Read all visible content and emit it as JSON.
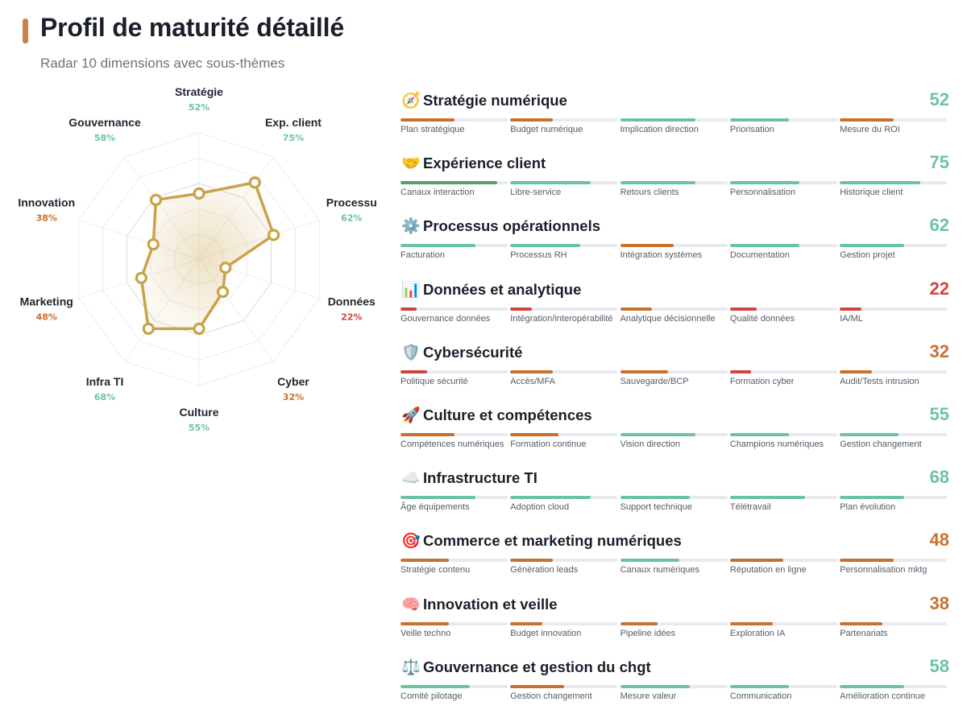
{
  "header": {
    "title": "Profil de maturité détaillé",
    "subtitle": "Radar 10 dimensions avec sous-thèmes"
  },
  "colors": {
    "high": "#6cc3a3",
    "mid": "#c9702f",
    "low": "#d0453d",
    "highest_bar": "#56a06d",
    "accent": "#c9824a",
    "radar_line": "#c9a24a"
  },
  "chart_data": {
    "type": "radar",
    "scale": [
      0,
      100
    ],
    "axes": [
      {
        "label": "Stratégie",
        "value_label": "52%",
        "value": 52
      },
      {
        "label": "Exp. client",
        "value_label": "75%",
        "value": 75
      },
      {
        "label": "Processu",
        "value_label": "62%",
        "value": 62
      },
      {
        "label": "Données",
        "value_label": "22%",
        "value": 22
      },
      {
        "label": "Cyber",
        "value_label": "32%",
        "value": 32
      },
      {
        "label": "Culture",
        "value_label": "55%",
        "value": 55
      },
      {
        "label": "Infra TI",
        "value_label": "68%",
        "value": 68
      },
      {
        "label": "Marketing",
        "value_label": "48%",
        "value": 48
      },
      {
        "label": "Innovation",
        "value_label": "38%",
        "value": 38
      },
      {
        "label": "Gouvernance",
        "value_label": "58%",
        "value": 58
      }
    ]
  },
  "dimensions": [
    {
      "icon": "compass-icon",
      "glyph": "🧭",
      "title": "Stratégie numérique",
      "score": "52",
      "level": "high",
      "subs": [
        {
          "label": "Plan stratégique",
          "value": 50,
          "level": "mid"
        },
        {
          "label": "Budget numérique",
          "value": 40,
          "level": "mid"
        },
        {
          "label": "Implication direction",
          "value": 70,
          "level": "high"
        },
        {
          "label": "Priorisation",
          "value": 55,
          "level": "high"
        },
        {
          "label": "Mesure du ROI",
          "value": 50,
          "level": "mid"
        }
      ]
    },
    {
      "icon": "handshake-icon",
      "glyph": "🤝",
      "title": "Expérience client",
      "score": "75",
      "level": "high",
      "subs": [
        {
          "label": "Canaux interaction",
          "value": 90,
          "level": "highest"
        },
        {
          "label": "Libre-service",
          "value": 75,
          "level": "high"
        },
        {
          "label": "Retours clients",
          "value": 70,
          "level": "high"
        },
        {
          "label": "Personnalisation",
          "value": 65,
          "level": "high"
        },
        {
          "label": "Historique client",
          "value": 75,
          "level": "high"
        }
      ]
    },
    {
      "icon": "gear-icon",
      "glyph": "⚙️",
      "title": "Processus opérationnels",
      "score": "62",
      "level": "high",
      "subs": [
        {
          "label": "Facturation",
          "value": 70,
          "level": "high"
        },
        {
          "label": "Processus RH",
          "value": 65,
          "level": "high"
        },
        {
          "label": "Intégration systèmes",
          "value": 50,
          "level": "mid"
        },
        {
          "label": "Documentation",
          "value": 65,
          "level": "high"
        },
        {
          "label": "Gestion projet",
          "value": 60,
          "level": "high"
        }
      ]
    },
    {
      "icon": "bar-chart-icon",
      "glyph": "📊",
      "title": "Données et analytique",
      "score": "22",
      "level": "low",
      "subs": [
        {
          "label": "Gouvernance données",
          "value": 15,
          "level": "low"
        },
        {
          "label": "Intégration/interopérabilité",
          "value": 20,
          "level": "low"
        },
        {
          "label": "Analytique décisionnelle",
          "value": 30,
          "level": "mid"
        },
        {
          "label": "Qualité données",
          "value": 25,
          "level": "low"
        },
        {
          "label": "IA/ML",
          "value": 20,
          "level": "low"
        }
      ]
    },
    {
      "icon": "shield-icon",
      "glyph": "🛡️",
      "title": "Cybersécurité",
      "score": "32",
      "level": "mid",
      "subs": [
        {
          "label": "Politique sécurité",
          "value": 25,
          "level": "low"
        },
        {
          "label": "Accès/MFA",
          "value": 40,
          "level": "mid"
        },
        {
          "label": "Sauvegarde/BCP",
          "value": 45,
          "level": "mid"
        },
        {
          "label": "Formation cyber",
          "value": 20,
          "level": "low"
        },
        {
          "label": "Audit/Tests intrusion",
          "value": 30,
          "level": "mid"
        }
      ]
    },
    {
      "icon": "rocket-icon",
      "glyph": "🚀",
      "title": "Culture et compétences",
      "score": "55",
      "level": "high",
      "subs": [
        {
          "label": "Compétences numériques",
          "value": 50,
          "level": "mid"
        },
        {
          "label": "Formation continue",
          "value": 45,
          "level": "mid"
        },
        {
          "label": "Vision direction",
          "value": 70,
          "level": "high"
        },
        {
          "label": "Champions numériques",
          "value": 55,
          "level": "high"
        },
        {
          "label": "Gestion changement",
          "value": 55,
          "level": "high"
        }
      ]
    },
    {
      "icon": "cloud-icon",
      "glyph": "☁️",
      "title": "Infrastructure TI",
      "score": "68",
      "level": "high",
      "subs": [
        {
          "label": "Âge équipements",
          "value": 70,
          "level": "high"
        },
        {
          "label": "Adoption cloud",
          "value": 75,
          "level": "high"
        },
        {
          "label": "Support technique",
          "value": 65,
          "level": "high"
        },
        {
          "label": "Télétravail",
          "value": 70,
          "level": "high"
        },
        {
          "label": "Plan évolution",
          "value": 60,
          "level": "high"
        }
      ]
    },
    {
      "icon": "target-icon",
      "glyph": "🎯",
      "title": "Commerce et marketing numériques",
      "score": "48",
      "level": "mid",
      "subs": [
        {
          "label": "Stratégie contenu",
          "value": 45,
          "level": "mid"
        },
        {
          "label": "Génération leads",
          "value": 40,
          "level": "mid"
        },
        {
          "label": "Canaux numériques",
          "value": 55,
          "level": "high"
        },
        {
          "label": "Réputation en ligne",
          "value": 50,
          "level": "mid"
        },
        {
          "label": "Personnalisation mktg",
          "value": 50,
          "level": "mid"
        }
      ]
    },
    {
      "icon": "brain-icon",
      "glyph": "🧠",
      "title": "Innovation et veille",
      "score": "38",
      "level": "mid",
      "subs": [
        {
          "label": "Veille techno",
          "value": 45,
          "level": "mid"
        },
        {
          "label": "Budget innovation",
          "value": 30,
          "level": "mid"
        },
        {
          "label": "Pipeline idées",
          "value": 35,
          "level": "mid"
        },
        {
          "label": "Exploration IA",
          "value": 40,
          "level": "mid"
        },
        {
          "label": "Partenariats",
          "value": 40,
          "level": "mid"
        }
      ]
    },
    {
      "icon": "scales-icon",
      "glyph": "⚖️",
      "title": "Gouvernance et gestion du chgt",
      "score": "58",
      "level": "high",
      "subs": [
        {
          "label": "Comité pilotage",
          "value": 65,
          "level": "high"
        },
        {
          "label": "Gestion changement",
          "value": 50,
          "level": "mid"
        },
        {
          "label": "Mesure valeur",
          "value": 65,
          "level": "high"
        },
        {
          "label": "Communication",
          "value": 55,
          "level": "high"
        },
        {
          "label": "Amélioration continue",
          "value": 60,
          "level": "high"
        }
      ]
    }
  ]
}
